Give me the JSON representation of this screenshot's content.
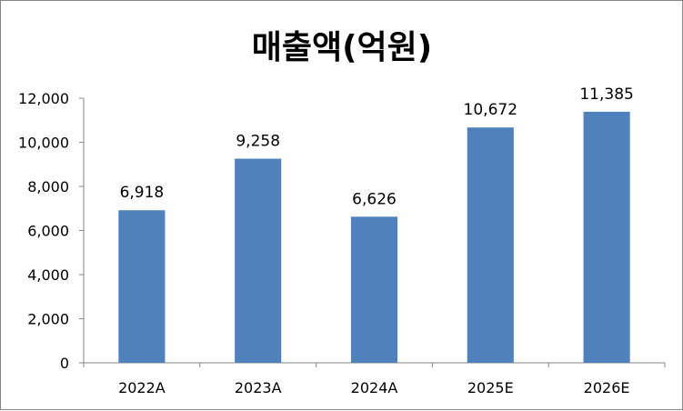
{
  "chart_data": {
    "type": "bar",
    "title": "매출액(억원)",
    "categories": [
      "2022A",
      "2023A",
      "2024A",
      "2025E",
      "2026E"
    ],
    "values": [
      6918,
      9258,
      6626,
      10672,
      11385
    ],
    "value_labels": [
      "6,918",
      "9,258",
      "6,626",
      "10,672",
      "11,385"
    ],
    "ylim": [
      0,
      12000
    ],
    "yticks": [
      0,
      2000,
      4000,
      6000,
      8000,
      10000,
      12000
    ],
    "ytick_labels": [
      "0",
      "2,000",
      "4,000",
      "6,000",
      "8,000",
      "10,000",
      "12,000"
    ],
    "xlabel": "",
    "ylabel": "",
    "grid": false,
    "legend": "none",
    "bar_color": "#4F81BD",
    "axis_color": "#868686"
  }
}
